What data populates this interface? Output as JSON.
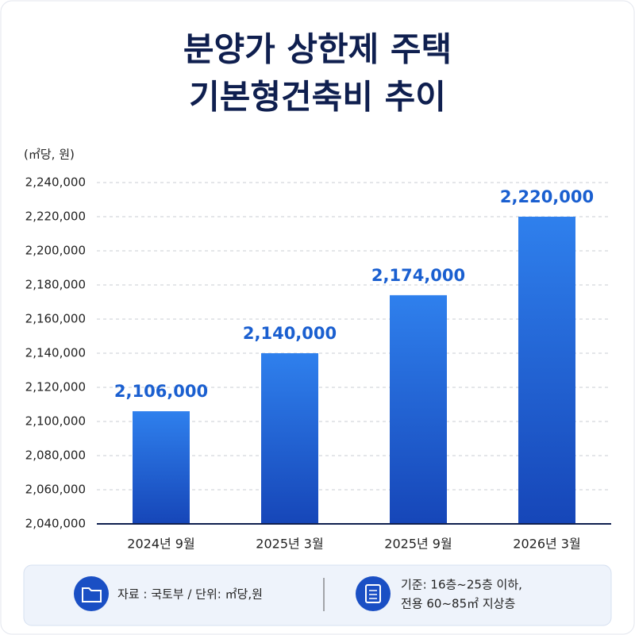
{
  "chart_data": {
    "type": "bar",
    "title": [
      "분양가 상한제 주택",
      "기본형건축비 추이"
    ],
    "y_label": "(㎡당, 원)",
    "categories": [
      "2024년 9월",
      "2025년 3월",
      "2025년 9월",
      "2026년 3월"
    ],
    "values": [
      2106000,
      2140000,
      2174000,
      2220000
    ],
    "value_labels": [
      "2,106,000",
      "2,140,000",
      "2,174,000",
      "2,220,000"
    ],
    "color": "#2f80ed",
    "ylim": [
      2040000,
      2240000
    ],
    "yticks": [
      {
        "value": 2040000,
        "label": "2,040,000"
      },
      {
        "value": 2060000,
        "label": "2,060,000"
      },
      {
        "value": 2080000,
        "label": "2,080,000"
      },
      {
        "value": 2100000,
        "label": "2,100,000"
      },
      {
        "value": 2120000,
        "label": "2,120,000"
      },
      {
        "value": 2140000,
        "label": "2,140,000"
      },
      {
        "value": 2160000,
        "label": "2,160,000"
      },
      {
        "value": 2180000,
        "label": "2,180,000"
      },
      {
        "value": 2200000,
        "label": "2,200,000"
      },
      {
        "value": 2220000,
        "label": "2,220,000"
      },
      {
        "value": 2240000,
        "label": "2,240,000"
      }
    ],
    "grid": true
  },
  "footer": {
    "source": "자료 : 국토부 / 단위: ㎡당,원",
    "criteria": [
      "기준: 16층~25층 이하,",
      "전용 60~85㎡ 지상층"
    ]
  }
}
